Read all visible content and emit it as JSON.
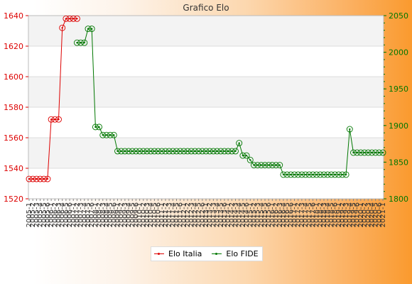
{
  "chart_data": {
    "type": "line",
    "title": "Grafico Elo",
    "xlabel": "",
    "ylabel": "",
    "y_left": {
      "min": 1520,
      "max": 1640,
      "step": 20,
      "ticks": [
        "1520",
        "1540",
        "1560",
        "1580",
        "1600",
        "1620",
        "1640"
      ],
      "color": "#dd0000"
    },
    "y_right": {
      "min": 1800,
      "max": 2050,
      "step": 50,
      "ticks": [
        "1800",
        "1850",
        "1900",
        "1950",
        "2000",
        "2050"
      ],
      "color": "#007700"
    },
    "grid": true,
    "legend_position": "bottom-center",
    "x_count": 97,
    "x_tick_labels": [
      "2005-1",
      "2005-2",
      "2005-3",
      "2005-4",
      "2005-5",
      "2005-6",
      "2006-1",
      "2006-2",
      "2006-3",
      "2006-4",
      "2006-5",
      "2006-6",
      "2007-1",
      "2007-2",
      "2007-3",
      "2007-4",
      "2007-5",
      "2007-6",
      "2008-1",
      "2008-2",
      "2008-3",
      "2008-4",
      "2008-5",
      "2008-6",
      "2009-1",
      "2009-2",
      "2009-3",
      "2009-4",
      "2009-5",
      "2009-6",
      "2010-1",
      "2010-2",
      "2010-3",
      "2010-4",
      "2010-5",
      "2010-6",
      "2011-1",
      "2011-2",
      "2011-3",
      "2011-4",
      "2011-5",
      "2011-6",
      "2012-1",
      "2012-2",
      "2012-3",
      "2012-4",
      "2012-5",
      "2012-6",
      "2013-1",
      "2013-2",
      "2013-3",
      "2013-4",
      "2013-5",
      "2013-6",
      "2014-1",
      "2014-2",
      "2014-3",
      "2014-4",
      "2014-5",
      "2014-6",
      "2015-1",
      "2015-2",
      "2015-3",
      "2015-4",
      "2015-5",
      "2015-6",
      "2016-1",
      "2016-2",
      "2016-3",
      "2016-4",
      "2016-5",
      "2016-6",
      "2017-1",
      "2017-2",
      "2017-3",
      "2017-4",
      "2017-5",
      "2017-6",
      "2018-1",
      "2018-2",
      "2018-3",
      "2018-4",
      "2018-5",
      "2018-6",
      "2019-1",
      "2019-2",
      "2019-3",
      "2019-4",
      "2019-5",
      "2019-6",
      "2020-1",
      "2020-2",
      "2020-3",
      "2020-4",
      "2020-5",
      "2020-6",
      "2021-1"
    ],
    "series": [
      {
        "name": "Elo Italia",
        "color": "#dd0000",
        "axis": "left",
        "segments": [
          {
            "start": 0,
            "end": 5,
            "value": 1533
          },
          {
            "start": 6,
            "end": 8,
            "value": 1572
          },
          {
            "start": 9,
            "end": 9,
            "value": 1632
          },
          {
            "start": 10,
            "end": 12,
            "value": 1638
          },
          {
            "start": 13,
            "end": 13,
            "value": 1638
          }
        ]
      },
      {
        "name": "Elo FIDE",
        "color": "#007700",
        "axis": "right",
        "segments": [
          {
            "start": 13,
            "end": 15,
            "value": 2013
          },
          {
            "start": 16,
            "end": 16,
            "value": 2032
          },
          {
            "start": 17,
            "end": 17,
            "value": 2032
          },
          {
            "start": 18,
            "end": 18,
            "value": 1898
          },
          {
            "start": 19,
            "end": 19,
            "value": 1898
          },
          {
            "start": 20,
            "end": 23,
            "value": 1887
          },
          {
            "start": 24,
            "end": 56,
            "value": 1865
          },
          {
            "start": 57,
            "end": 57,
            "value": 1876
          },
          {
            "start": 58,
            "end": 59,
            "value": 1859
          },
          {
            "start": 60,
            "end": 60,
            "value": 1853
          },
          {
            "start": 61,
            "end": 68,
            "value": 1846
          },
          {
            "start": 69,
            "end": 86,
            "value": 1833
          },
          {
            "start": 87,
            "end": 87,
            "value": 1895
          },
          {
            "start": 88,
            "end": 96,
            "value": 1863
          }
        ]
      }
    ]
  }
}
